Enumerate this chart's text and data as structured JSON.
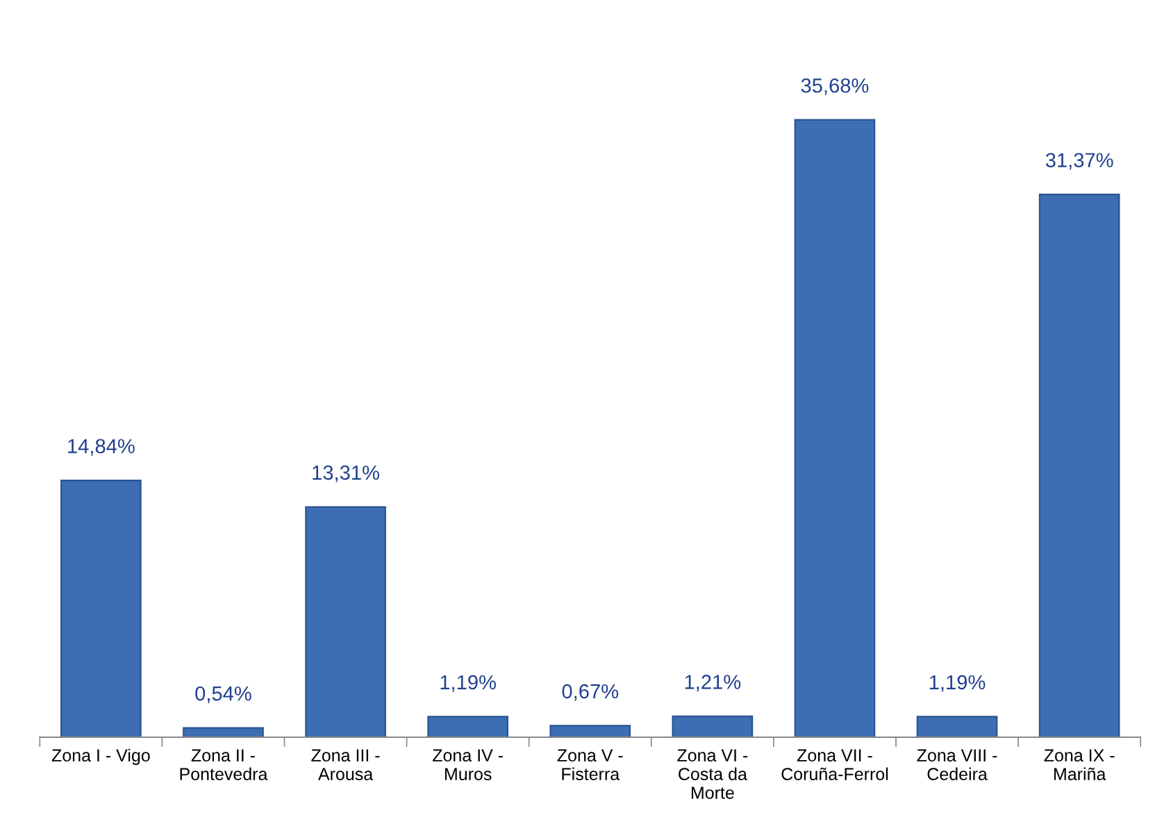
{
  "chart_data": {
    "type": "bar",
    "categories": [
      "Zona I - Vigo",
      "Zona II -\nPontevedra",
      "Zona III -\nArousa",
      "Zona IV -\nMuros",
      "Zona V -\nFisterra",
      "Zona VI -\nCosta da\nMorte",
      "Zona VII -\nCoruña-Ferrol",
      "Zona VIII -\nCedeira",
      "Zona IX -\nMariña"
    ],
    "values": [
      14.84,
      0.54,
      13.31,
      1.19,
      0.67,
      1.21,
      35.68,
      1.19,
      31.37
    ],
    "value_labels": [
      "14,84%",
      "0,54%",
      "13,31%",
      "1,19%",
      "0,67%",
      "1,21%",
      "35,68%",
      "1,19%",
      "31,37%"
    ],
    "color": "#3d6eb4",
    "grid": false,
    "legend": false
  }
}
